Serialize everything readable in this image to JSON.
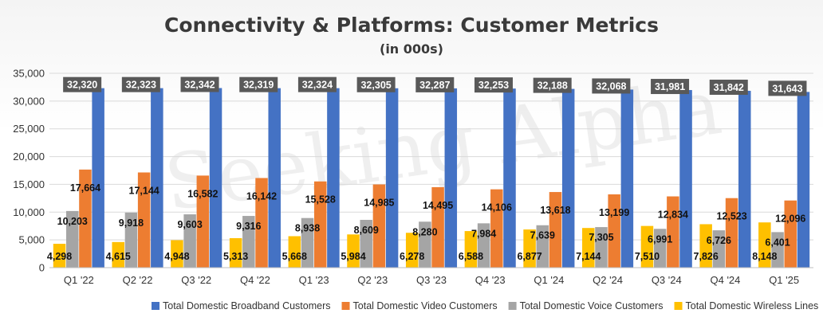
{
  "chart_data": {
    "type": "bar",
    "title": "Connectivity & Platforms: Customer Metrics",
    "subtitle": "(in 000s)",
    "watermark": "Seeking Alpha",
    "categories": [
      "Q1 '22",
      "Q2 '22",
      "Q3 '22",
      "Q4 '22",
      "Q1 '23",
      "Q2 '23",
      "Q3 '23",
      "Q4 '23",
      "Q1 '24",
      "Q2 '24",
      "Q3 '24",
      "Q4 '24",
      "Q1 '25"
    ],
    "ylim": [
      0,
      35000
    ],
    "yticks": [
      "0",
      "5,000",
      "10,000",
      "15,000",
      "20,000",
      "25,000",
      "30,000",
      "35,000"
    ],
    "grid": true,
    "legend_position": "bottom",
    "series": [
      {
        "name": "Total Domestic Wireless Lines",
        "color": "#FFC000",
        "values": [
          4298,
          4615,
          4948,
          5313,
          5668,
          5984,
          6278,
          6588,
          6877,
          7144,
          7510,
          7826,
          8148
        ],
        "labels": [
          "4,298",
          "4,615",
          "4,948",
          "5,313",
          "5,668",
          "5,984",
          "6,278",
          "6,588",
          "6,877",
          "7,144",
          "7,510",
          "7,826",
          "8,148"
        ]
      },
      {
        "name": "Total Domestic Voice Customers",
        "color": "#A5A5A5",
        "values": [
          10203,
          9918,
          9603,
          9316,
          8938,
          8609,
          8280,
          7984,
          7639,
          7305,
          6991,
          6726,
          6401
        ],
        "labels": [
          "10,203",
          "9,918",
          "9,603",
          "9,316",
          "8,938",
          "8,609",
          "8,280",
          "7,984",
          "7,639",
          "7,305",
          "6,991",
          "6,726",
          "6,401"
        ]
      },
      {
        "name": "Total Domestic Video Customers",
        "color": "#ED7D31",
        "values": [
          17664,
          17144,
          16582,
          16142,
          15528,
          14985,
          14495,
          14106,
          13618,
          13199,
          12834,
          12523,
          12096
        ],
        "labels": [
          "17,664",
          "17,144",
          "16,582",
          "16,142",
          "15,528",
          "14,985",
          "14,495",
          "14,106",
          "13,618",
          "13,199",
          "12,834",
          "12,523",
          "12,096"
        ]
      },
      {
        "name": "Total Domestic Broadband Customers",
        "color": "#4472C4",
        "values": [
          32320,
          32323,
          32342,
          32319,
          32324,
          32305,
          32287,
          32253,
          32188,
          32068,
          31981,
          31842,
          31643
        ],
        "labels": [
          "32,320",
          "32,323",
          "32,342",
          "32,319",
          "32,324",
          "32,305",
          "32,287",
          "32,253",
          "32,188",
          "32,068",
          "31,981",
          "31,842",
          "31,643"
        ],
        "label_style": "boxed"
      }
    ],
    "legend_order": [
      "Total Domestic Broadband Customers",
      "Total Domestic Video Customers",
      "Total Domestic Voice Customers",
      "Total Domestic Wireless Lines"
    ]
  }
}
